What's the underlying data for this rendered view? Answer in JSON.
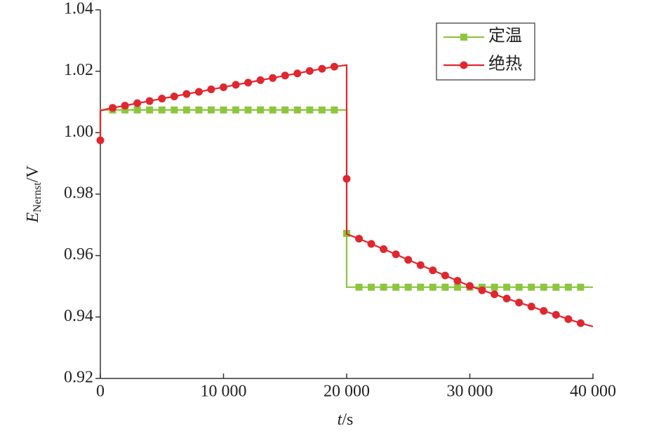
{
  "chart_data": {
    "type": "line",
    "x_label": {
      "symbol": "t",
      "unit": "/s"
    },
    "y_label": {
      "symbol": "E",
      "subscript": "Nernst",
      "unit": "/V"
    },
    "xlim": [
      0,
      40000
    ],
    "xticks": [
      0,
      {
        "value": 10000,
        "label": "10 000"
      },
      {
        "value": 20000,
        "label": "20 000"
      },
      {
        "value": 30000,
        "label": "30 000"
      },
      {
        "value": 40000,
        "label": "40 000"
      }
    ],
    "ylim": [
      0.92,
      1.04
    ],
    "yticks": [
      0.92,
      0.94,
      0.96,
      0.98,
      {
        "value": 1,
        "label": "1.00"
      },
      1.02,
      1.04
    ],
    "legend": "upper right",
    "series": [
      {
        "name": "定温",
        "color": "#8cc63e",
        "marker": "square",
        "line": {
          "x": [
            0,
            0,
            20000,
            20000,
            20000,
            40000
          ],
          "values": [
            0.9975,
            1.0074,
            1.0074,
            0.9672,
            0.9497,
            0.9497
          ]
        },
        "markers": {
          "x": [
            1000,
            2000,
            3000,
            4000,
            5000,
            6000,
            7000,
            8000,
            9000,
            10000,
            11000,
            12000,
            13000,
            14000,
            15000,
            16000,
            17000,
            18000,
            19000,
            20000,
            21000,
            22000,
            23000,
            24000,
            25000,
            26000,
            27000,
            28000,
            29000,
            30000,
            31000,
            32000,
            33000,
            34000,
            35000,
            36000,
            37000,
            38000,
            39000
          ],
          "values": [
            1.0074,
            1.0074,
            1.0074,
            1.0074,
            1.0074,
            1.0074,
            1.0074,
            1.0074,
            1.0074,
            1.0074,
            1.0074,
            1.0074,
            1.0074,
            1.0074,
            1.0074,
            1.0074,
            1.0074,
            1.0074,
            1.0074,
            0.9672,
            0.9497,
            0.9497,
            0.9497,
            0.9497,
            0.9497,
            0.9497,
            0.9497,
            0.9497,
            0.9497,
            0.9497,
            0.9497,
            0.9497,
            0.9497,
            0.9497,
            0.9497,
            0.9497,
            0.9497,
            0.9497,
            0.9497
          ]
        }
      },
      {
        "name": "绝热",
        "color": "#e0262e",
        "marker": "circle",
        "line": {
          "x": [
            0,
            0,
            1000,
            2000,
            3000,
            4000,
            5000,
            6000,
            7000,
            8000,
            9000,
            10000,
            11000,
            12000,
            13000,
            14000,
            15000,
            16000,
            17000,
            18000,
            19000,
            20000,
            20000,
            20000,
            21000,
            22000,
            23000,
            24000,
            25000,
            26000,
            27000,
            28000,
            29000,
            30000,
            31000,
            32000,
            33000,
            34000,
            35000,
            36000,
            37000,
            38000,
            39000,
            40000
          ],
          "values": [
            0.9975,
            1.0072,
            1.0081,
            1.0088,
            1.0096,
            1.0103,
            1.0111,
            1.0118,
            1.0126,
            1.0133,
            1.0141,
            1.0148,
            1.0156,
            1.0163,
            1.0171,
            1.0178,
            1.0186,
            1.0193,
            1.0201,
            1.0208,
            1.0215,
            1.022,
            0.985,
            0.967,
            0.9655,
            0.9638,
            0.9621,
            0.9604,
            0.9586,
            0.9569,
            0.9552,
            0.9535,
            0.9518,
            0.9501,
            0.9487,
            0.9474,
            0.946,
            0.9447,
            0.9434,
            0.942,
            0.9407,
            0.9393,
            0.938,
            0.9369
          ]
        },
        "markers": {
          "x": [
            0,
            1000,
            2000,
            3000,
            4000,
            5000,
            6000,
            7000,
            8000,
            9000,
            10000,
            11000,
            12000,
            13000,
            14000,
            15000,
            16000,
            17000,
            18000,
            19000,
            20000,
            21000,
            22000,
            23000,
            24000,
            25000,
            26000,
            27000,
            28000,
            29000,
            30000,
            31000,
            32000,
            33000,
            34000,
            35000,
            36000,
            37000,
            38000,
            39000
          ],
          "values": [
            0.9975,
            1.0081,
            1.0088,
            1.0096,
            1.0103,
            1.0111,
            1.0118,
            1.0126,
            1.0133,
            1.0141,
            1.0148,
            1.0156,
            1.0163,
            1.0171,
            1.0178,
            1.0186,
            1.0193,
            1.0201,
            1.0208,
            1.0215,
            0.985,
            0.9655,
            0.9638,
            0.9621,
            0.9604,
            0.9586,
            0.9569,
            0.9552,
            0.9535,
            0.9518,
            0.9501,
            0.9487,
            0.9474,
            0.946,
            0.9447,
            0.9434,
            0.942,
            0.9407,
            0.9393,
            0.938
          ]
        }
      }
    ]
  }
}
